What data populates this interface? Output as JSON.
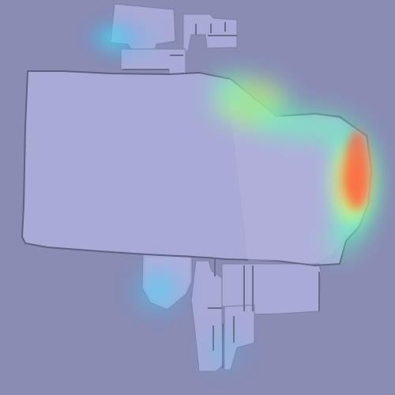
{
  "map": {
    "background_color": "#8a8cb4",
    "floor_color": "#a9aad6",
    "wall_color": "#5f6180",
    "heatmap_palette": [
      "#2c6bff",
      "#39d6ff",
      "#62ffb6",
      "#e9ff59",
      "#ffb24e",
      "#ff5c3f"
    ],
    "layers": [
      "floor-plan",
      "signal-heatmap"
    ],
    "hotspots": [
      {
        "id": "north-room-cool",
        "intensity": 0.28
      },
      {
        "id": "upper-right-warm",
        "intensity": 0.72
      },
      {
        "id": "east-edge-hot",
        "intensity": 1.0
      },
      {
        "id": "south-room-cool",
        "intensity": 0.45
      },
      {
        "id": "lower-corridor-cool",
        "intensity": 0.25
      }
    ]
  }
}
